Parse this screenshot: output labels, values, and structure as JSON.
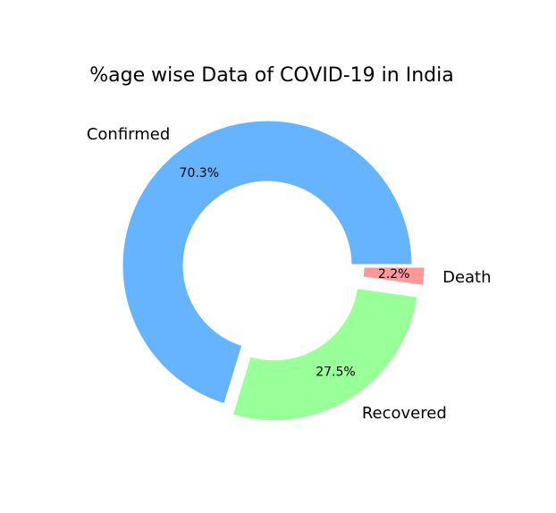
{
  "chart_data": {
    "type": "pie",
    "title": "%age wise Data of COVID-19 in India",
    "donut": true,
    "slices": [
      {
        "label": "Confirmed",
        "percent": 70.3,
        "pct_text": "70.3%",
        "color": "#66b3ff",
        "exploded": false
      },
      {
        "label": "Recovered",
        "percent": 27.5,
        "pct_text": "27.5%",
        "color": "#99ff99",
        "exploded": true
      },
      {
        "label": "Death",
        "percent": 2.2,
        "pct_text": "2.2%",
        "color": "#ff9999",
        "exploded": true
      }
    ]
  }
}
